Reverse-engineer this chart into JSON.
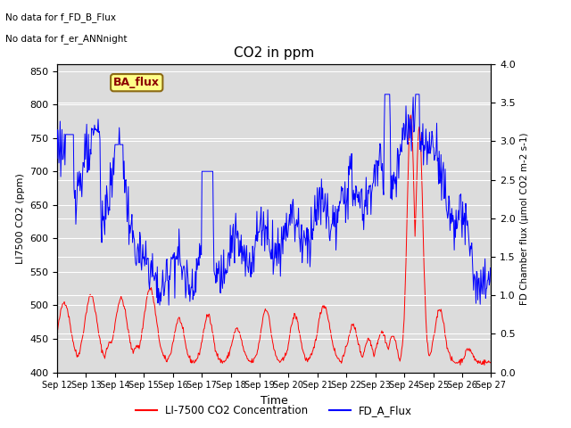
{
  "title": "CO2 in ppm",
  "xlabel": "Time",
  "ylabel_left": "LI7500 CO2 (ppm)",
  "ylabel_right": "FD Chamber flux (μmol CO2 m-2 s-1)",
  "ylim_left": [
    400,
    860
  ],
  "ylim_right": [
    0.0,
    4.0
  ],
  "xtick_labels": [
    "Sep 12",
    "Sep 13",
    "Sep 14",
    "Sep 15",
    "Sep 16",
    "Sep 17",
    "Sep 18",
    "Sep 19",
    "Sep 20",
    "Sep 21",
    "Sep 22",
    "Sep 23",
    "Sep 24",
    "Sep 25",
    "Sep 26",
    "Sep 27"
  ],
  "yticks_left": [
    400,
    450,
    500,
    550,
    600,
    650,
    700,
    750,
    800,
    850
  ],
  "yticks_right": [
    0.0,
    0.5,
    1.0,
    1.5,
    2.0,
    2.5,
    3.0,
    3.5,
    4.0
  ],
  "line_color_red": "#FF0000",
  "line_color_blue": "#0000FF",
  "bg_color": "#DCDCDC",
  "legend_red": "LI-7500 CO2 Concentration",
  "legend_blue": "FD_A_Flux",
  "annotation_text1": "No data for f_FD_B_Flux",
  "annotation_text2": "No data for f_er_ANNnight",
  "ba_flux_label": "BA_flux",
  "figsize": [
    6.4,
    4.8
  ],
  "dpi": 100
}
